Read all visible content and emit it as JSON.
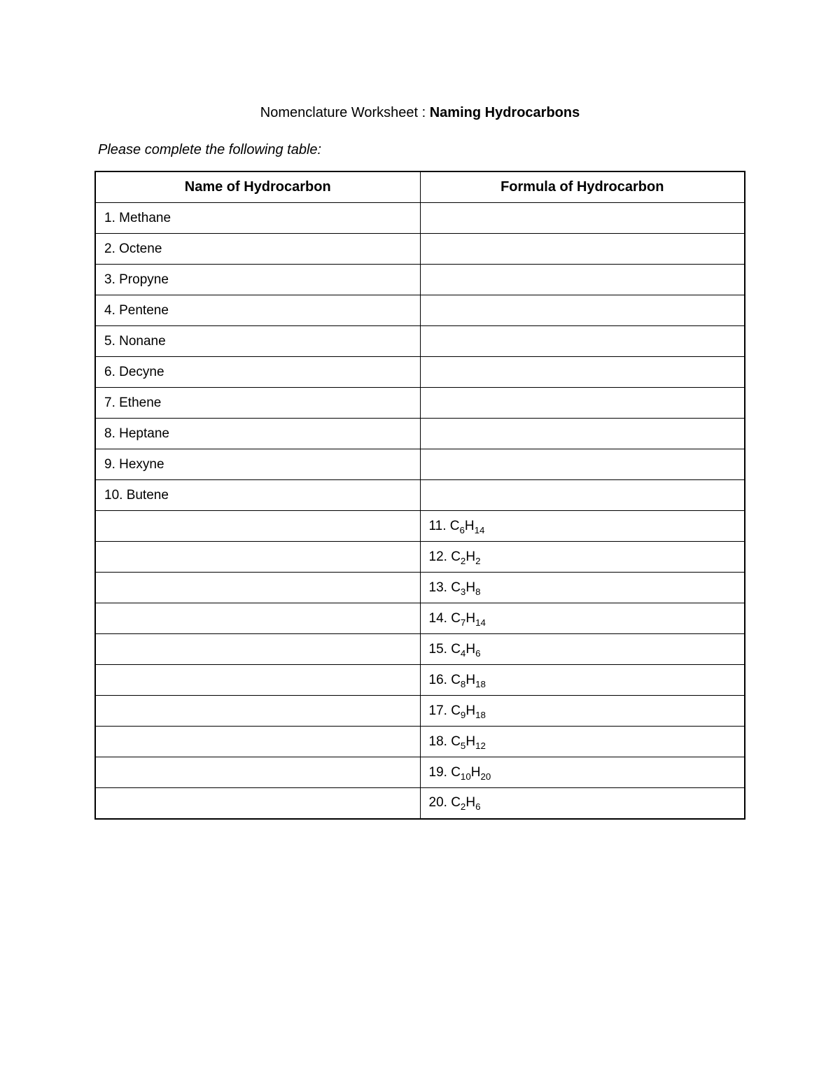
{
  "title_prefix": "Nomenclature Worksheet : ",
  "title_bold": "Naming Hydrocarbons",
  "instruction": "Please complete the following table:",
  "table": {
    "header_name": "Name of Hydrocarbon",
    "header_formula": "Formula of Hydrocarbon",
    "rows": [
      {
        "name": "1. Methane",
        "formula": ""
      },
      {
        "name": "2. Octene",
        "formula": ""
      },
      {
        "name": "3. Propyne",
        "formula": ""
      },
      {
        "name": "4. Pentene",
        "formula": ""
      },
      {
        "name": "5. Nonane",
        "formula": ""
      },
      {
        "name": "6. Decyne",
        "formula": ""
      },
      {
        "name": "7. Ethene",
        "formula": ""
      },
      {
        "name": "8. Heptane",
        "formula": ""
      },
      {
        "name": "9. Hexyne",
        "formula": ""
      },
      {
        "name": "10. Butene",
        "formula": ""
      },
      {
        "name": "",
        "formula_prefix": "11. ",
        "formula_c": "6",
        "formula_h": "14"
      },
      {
        "name": "",
        "formula_prefix": "12. ",
        "formula_c": "2",
        "formula_h": "2"
      },
      {
        "name": "",
        "formula_prefix": "13. ",
        "formula_c": "3",
        "formula_h": "8"
      },
      {
        "name": "",
        "formula_prefix": "14. ",
        "formula_c": "7",
        "formula_h": "14"
      },
      {
        "name": "",
        "formula_prefix": "15. ",
        "formula_c": "4",
        "formula_h": "6"
      },
      {
        "name": "",
        "formula_prefix": "16. ",
        "formula_c": "8",
        "formula_h": "18"
      },
      {
        "name": "",
        "formula_prefix": "17. ",
        "formula_c": "9",
        "formula_h": "18"
      },
      {
        "name": "",
        "formula_prefix": "18. ",
        "formula_c": "5",
        "formula_h": "12"
      },
      {
        "name": "",
        "formula_prefix": "19. ",
        "formula_c": "10",
        "formula_h": "20"
      },
      {
        "name": "",
        "formula_prefix": "20. ",
        "formula_c": "2",
        "formula_h": "6"
      }
    ]
  },
  "colors": {
    "background": "#ffffff",
    "text": "#000000",
    "border": "#000000"
  },
  "typography": {
    "title_fontsize": 20,
    "instruction_fontsize": 20,
    "header_fontsize": 20,
    "cell_fontsize": 19,
    "font_family": "Arial"
  }
}
